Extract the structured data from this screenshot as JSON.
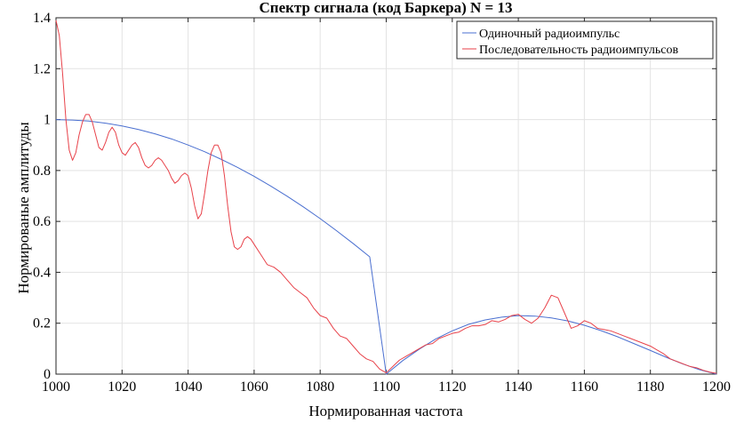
{
  "chart_data": {
    "type": "line",
    "title": "Спектр сигнала (код Баркера)  N = 13",
    "xlabel": "Нормированная частота",
    "ylabel": "Нормированые амплитуды",
    "xlim": [
      1000,
      1200
    ],
    "ylim": [
      0,
      1.4
    ],
    "grid": true,
    "legend_position": "top-right",
    "x_ticks": [
      "1000",
      "1020",
      "1040",
      "1060",
      "1080",
      "1100",
      "1120",
      "1140",
      "1160",
      "1180",
      "1200"
    ],
    "y_ticks": [
      "0",
      "0.2",
      "0.4",
      "0.6",
      "0.8",
      "1",
      "1.2",
      "1.4"
    ],
    "series": [
      {
        "name": "Одиночный радиоимпульс",
        "color": "#4a6fd0",
        "x": [
          1000,
          1005,
          1010,
          1015,
          1020,
          1025,
          1030,
          1035,
          1040,
          1045,
          1050,
          1055,
          1060,
          1065,
          1070,
          1075,
          1080,
          1085,
          1090,
          1095,
          1100,
          1105,
          1110,
          1115,
          1120,
          1125,
          1130,
          1135,
          1140,
          1145,
          1150,
          1155,
          1160,
          1165,
          1170,
          1175,
          1180,
          1185,
          1190,
          1195,
          1200
        ],
        "y": [
          1.0,
          0.998,
          0.994,
          0.986,
          0.975,
          0.961,
          0.944,
          0.924,
          0.9,
          0.874,
          0.844,
          0.812,
          0.777,
          0.739,
          0.699,
          0.656,
          0.611,
          0.563,
          0.513,
          0.461,
          0.0,
          0.053,
          0.098,
          0.138,
          0.17,
          0.196,
          0.213,
          0.224,
          0.23,
          0.228,
          0.221,
          0.209,
          0.192,
          0.171,
          0.147,
          0.12,
          0.093,
          0.065,
          0.039,
          0.017,
          0.0
        ]
      },
      {
        "name": "Последовательность радиоимпульсов",
        "color": "#e8424a",
        "x": [
          1000,
          1001,
          1002,
          1003,
          1004,
          1005,
          1006,
          1007,
          1008,
          1009,
          1010,
          1011,
          1012,
          1013,
          1014,
          1015,
          1016,
          1017,
          1018,
          1019,
          1020,
          1021,
          1022,
          1023,
          1024,
          1025,
          1026,
          1027,
          1028,
          1029,
          1030,
          1031,
          1032,
          1033,
          1034,
          1035,
          1036,
          1037,
          1038,
          1039,
          1040,
          1041,
          1042,
          1043,
          1044,
          1045,
          1046,
          1047,
          1048,
          1049,
          1050,
          1051,
          1052,
          1053,
          1054,
          1055,
          1056,
          1057,
          1058,
          1059,
          1060,
          1062,
          1064,
          1066,
          1068,
          1070,
          1072,
          1074,
          1076,
          1078,
          1080,
          1082,
          1084,
          1086,
          1088,
          1090,
          1092,
          1094,
          1096,
          1098,
          1100,
          1102,
          1104,
          1106,
          1108,
          1110,
          1112,
          1114,
          1116,
          1118,
          1120,
          1122,
          1124,
          1126,
          1128,
          1130,
          1132,
          1134,
          1136,
          1138,
          1140,
          1142,
          1144,
          1146,
          1148,
          1150,
          1152,
          1154,
          1156,
          1158,
          1160,
          1162,
          1164,
          1166,
          1168,
          1170,
          1172,
          1174,
          1176,
          1178,
          1180,
          1182,
          1184,
          1186,
          1188,
          1190,
          1192,
          1194,
          1196,
          1198,
          1200
        ],
        "y": [
          1.39,
          1.33,
          1.18,
          1.0,
          0.88,
          0.84,
          0.87,
          0.94,
          0.99,
          1.02,
          1.02,
          0.99,
          0.94,
          0.89,
          0.88,
          0.91,
          0.95,
          0.97,
          0.95,
          0.9,
          0.87,
          0.86,
          0.88,
          0.9,
          0.91,
          0.89,
          0.85,
          0.82,
          0.81,
          0.82,
          0.84,
          0.85,
          0.84,
          0.82,
          0.8,
          0.77,
          0.75,
          0.76,
          0.78,
          0.79,
          0.78,
          0.73,
          0.66,
          0.61,
          0.63,
          0.71,
          0.8,
          0.87,
          0.9,
          0.9,
          0.87,
          0.78,
          0.66,
          0.56,
          0.5,
          0.49,
          0.5,
          0.53,
          0.54,
          0.53,
          0.51,
          0.47,
          0.43,
          0.42,
          0.4,
          0.37,
          0.34,
          0.32,
          0.3,
          0.26,
          0.23,
          0.22,
          0.18,
          0.15,
          0.14,
          0.11,
          0.08,
          0.06,
          0.05,
          0.02,
          0.005,
          0.03,
          0.055,
          0.07,
          0.085,
          0.1,
          0.115,
          0.12,
          0.14,
          0.15,
          0.16,
          0.165,
          0.18,
          0.19,
          0.19,
          0.195,
          0.21,
          0.205,
          0.215,
          0.23,
          0.235,
          0.215,
          0.2,
          0.22,
          0.26,
          0.31,
          0.3,
          0.24,
          0.18,
          0.19,
          0.21,
          0.2,
          0.18,
          0.175,
          0.17,
          0.16,
          0.15,
          0.14,
          0.13,
          0.12,
          0.11,
          0.095,
          0.08,
          0.06,
          0.05,
          0.04,
          0.03,
          0.025,
          0.015,
          0.008,
          0.003
        ]
      }
    ]
  }
}
